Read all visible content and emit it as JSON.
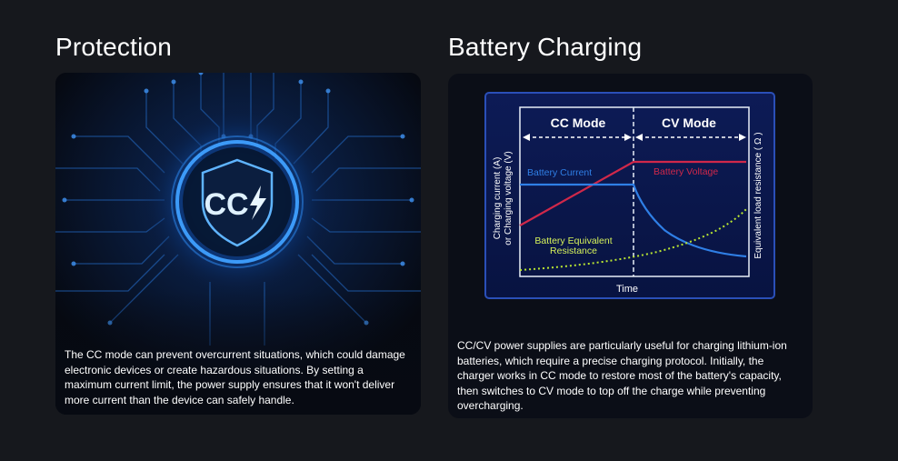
{
  "sections": {
    "protection": {
      "title": "Protection",
      "badge_text": "CC",
      "description": "The CC mode can prevent overcurrent situations, which could damage electronic devices or create hazardous situations. By setting a maximum current limit, the power supply ensures that it won't deliver more current than the device can safely handle."
    },
    "charging": {
      "title": "Battery Charging",
      "description": "CC/CV power supplies are particularly useful for charging lithium-ion batteries, which require a precise charging protocol. Initially, the charger works in CC mode to restore most of the battery's capacity, then switches to CV mode to top off the charge while preventing overcharging."
    }
  },
  "diagram": {
    "cc_mode_label": "CC Mode",
    "cv_mode_label": "CV Mode",
    "left_axis_line1": "Charging current (A)",
    "left_axis_line2": "or Charging voltage (V)",
    "right_axis_label": "Equivalent load resistance ( Ω )",
    "x_axis_label": "Time",
    "battery_current_label": "Battery Current",
    "battery_voltage_label": "Battery Voltage",
    "resistance_label_line1": "Battery Equivalent",
    "resistance_label_line2": "Resistance",
    "colors": {
      "current": "#2f7fe6",
      "voltage": "#d0284a",
      "resistance": "#b9e632",
      "frame": "#2a4fb8"
    }
  }
}
